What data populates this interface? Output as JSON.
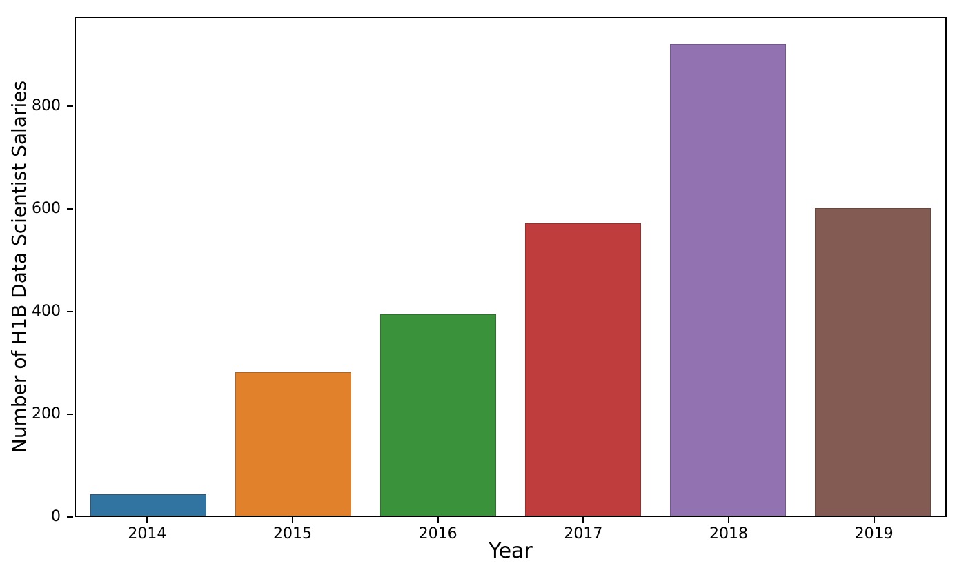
{
  "chart_data": {
    "type": "bar",
    "categories": [
      "2014",
      "2015",
      "2016",
      "2017",
      "2018",
      "2019"
    ],
    "values": [
      42,
      281,
      395,
      573,
      924,
      602
    ],
    "bar_colors": [
      "#3274a1",
      "#e1812c",
      "#3a923a",
      "#c03d3e",
      "#9372b2",
      "#845b53"
    ],
    "title": "",
    "xlabel": "Year",
    "ylabel": "Number of H1B Data Scientist Salaries",
    "ylim": [
      0,
      975
    ],
    "yticks": [
      0,
      200,
      400,
      600,
      800
    ],
    "bar_width_fraction": 0.8,
    "grid": false,
    "legend": "none"
  },
  "colors": {
    "text": "#000000",
    "spine": "#000000",
    "background": "#ffffff"
  }
}
